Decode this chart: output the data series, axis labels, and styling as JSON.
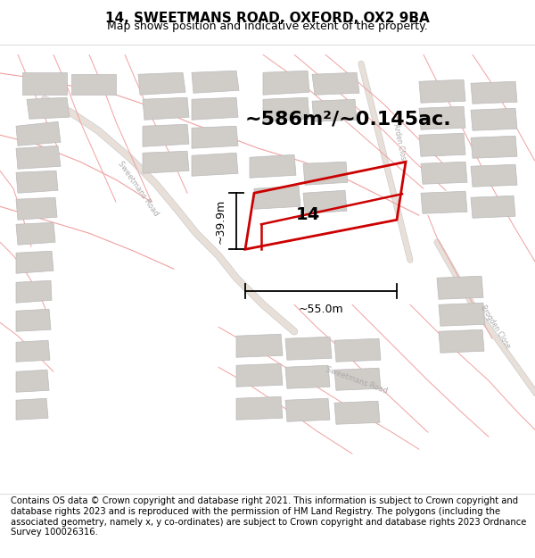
{
  "title": "14, SWEETMANS ROAD, OXFORD, OX2 9BA",
  "subtitle": "Map shows position and indicative extent of the property.",
  "area_text": "~586m²/~0.145ac.",
  "property_number": "14",
  "dim1": "~39.9m",
  "dim2": "~55.0m",
  "footer": "Contains OS data © Crown copyright and database right 2021. This information is subject to Crown copyright and database rights 2023 and is reproduced with the permission of HM Land Registry. The polygons (including the associated geometry, namely x, y co-ordinates) are subject to Crown copyright and database rights 2023 Ordnance Survey 100026316.",
  "bg_color": "#ffffff",
  "map_bg": "#f9f7f5",
  "road_color_pink": "#f0a0a0",
  "road_color_gray": "#aaaaaa",
  "building_color": "#d0ccc8",
  "building_edge": "#bbbbbb",
  "highlight_color": "#cc0000",
  "property_fill": "none",
  "title_fontsize": 11,
  "subtitle_fontsize": 9,
  "footer_fontsize": 7.2,
  "area_fontsize": 16,
  "dim_fontsize": 9,
  "label_color": "#aaaaaa"
}
